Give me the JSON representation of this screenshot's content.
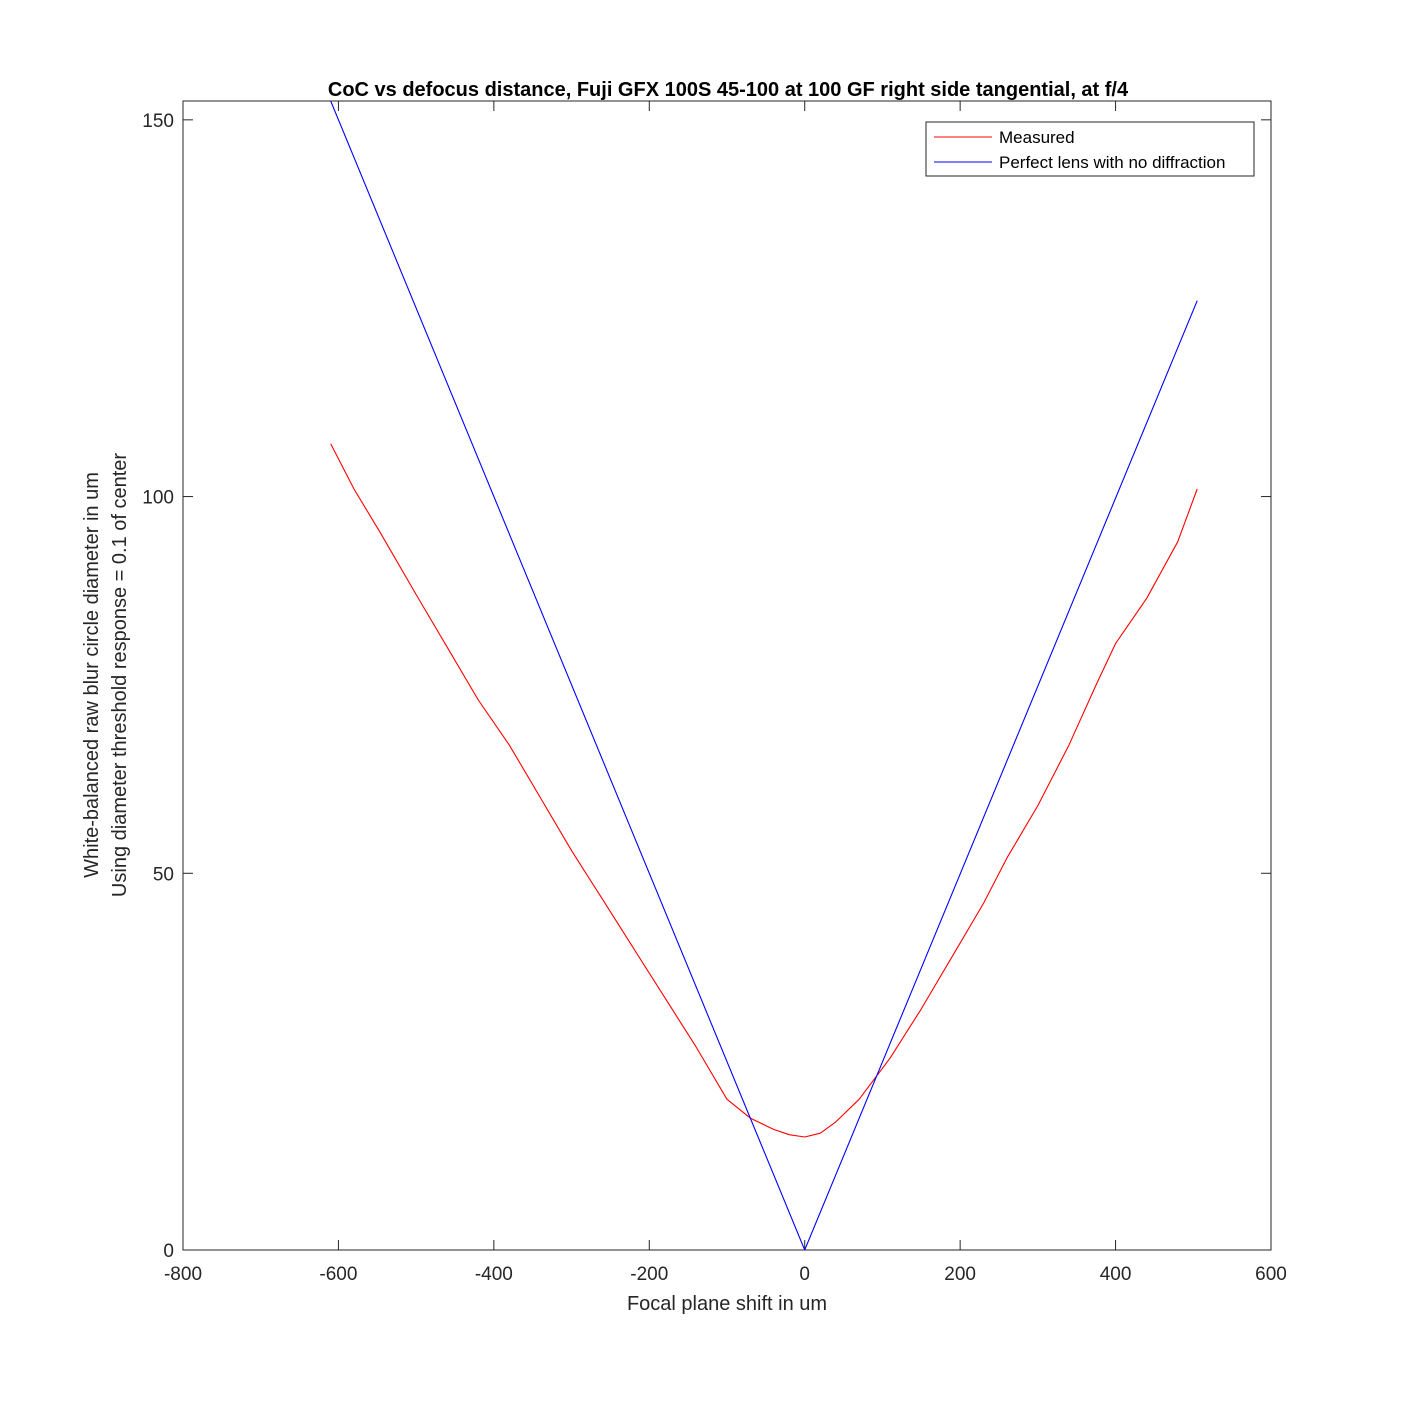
{
  "chart_data": {
    "type": "line",
    "title": "CoC vs defocus distance, Fuji GFX 100S 45-100 at 100 GF right side tangential, at f/4",
    "xlabel": "Focal plane shift in um",
    "ylabel": [
      "White-balanced raw blur circle diameter in um",
      "Using diameter threshold response = 0.1 of center"
    ],
    "xlim": [
      -800,
      600
    ],
    "ylim": [
      0,
      150
    ],
    "xticks": [
      -800,
      -600,
      -400,
      -200,
      0,
      200,
      400,
      600
    ],
    "yticks": [
      0,
      50,
      100,
      150
    ],
    "legend_position": "top-right",
    "grid": false,
    "series": [
      {
        "name": "Measured",
        "color": "#ff0000",
        "x": [
          -610,
          -580,
          -545,
          -500,
          -460,
          -420,
          -380,
          -340,
          -300,
          -260,
          -220,
          -180,
          -140,
          -100,
          -70,
          -40,
          -20,
          0,
          20,
          40,
          70,
          110,
          150,
          190,
          230,
          260,
          300,
          340,
          375,
          400,
          440,
          480,
          505
        ],
        "y": [
          107,
          101,
          95,
          87,
          80,
          73,
          67,
          60,
          53,
          46.5,
          40,
          33.5,
          27,
          20,
          17.5,
          16,
          15.3,
          15,
          15.5,
          17,
          20,
          25.5,
          32,
          39,
          46,
          52,
          59,
          67,
          75,
          80.5,
          86.5,
          94,
          101
        ]
      },
      {
        "name": "Perfect lens with no diffraction",
        "color": "#0000ff",
        "x": [
          -610,
          0,
          505
        ],
        "y": [
          152.5,
          0,
          126
        ]
      }
    ]
  }
}
